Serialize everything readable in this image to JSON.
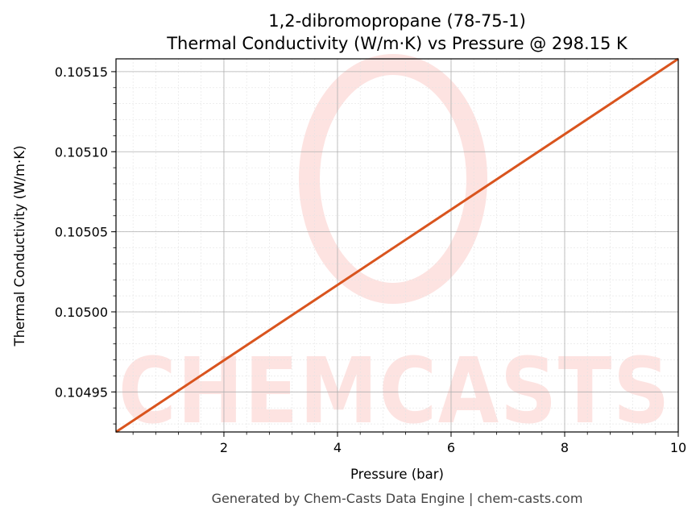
{
  "chart_data": {
    "type": "line",
    "title": "1,2-dibromopropane (78-75-1)",
    "subtitle": "Thermal Conductivity (W/m·K) vs Pressure @ 298.15 K",
    "xlabel": "Pressure (bar)",
    "ylabel": "Thermal Conductivity (W/m·K)",
    "xlim": [
      0.1,
      10
    ],
    "ylim": [
      0.104925,
      0.105158
    ],
    "xticks": [
      2,
      4,
      6,
      8,
      10
    ],
    "xtick_labels": [
      "2",
      "4",
      "6",
      "8",
      "10"
    ],
    "yticks": [
      0.10495,
      0.105,
      0.10505,
      0.1051,
      0.10515
    ],
    "ytick_labels": [
      "0.10495",
      "0.10500",
      "0.10505",
      "0.10510",
      "0.10515"
    ],
    "grid": true,
    "series": [
      {
        "x": [
          0.1,
          10
        ],
        "y": [
          0.104925,
          0.105158
        ],
        "color": "#d9541e"
      }
    ]
  },
  "watermark": {
    "text": "CHEMCASTS",
    "color": "#fde3e1"
  },
  "footer": {
    "text": "Generated by Chem-Casts Data Engine | chem-casts.com"
  }
}
